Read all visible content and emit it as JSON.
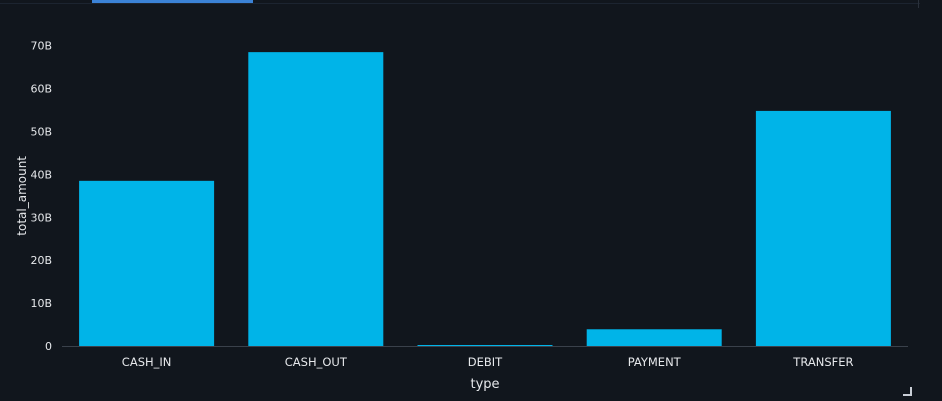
{
  "colors": {
    "background": "#11161d",
    "bar": "#00b4e8",
    "axis_text": "#e6e8eb",
    "axis_line": "#3a414b",
    "tab_indicator": "#3b82d6"
  },
  "chart_data": {
    "type": "bar",
    "xlabel": "type",
    "ylabel": "total_amount",
    "categories": [
      "CASH_IN",
      "CASH_OUT",
      "DEBIT",
      "PAYMENT",
      "TRANSFER"
    ],
    "values": [
      38.5,
      68.5,
      0.2,
      3.9,
      54.8
    ],
    "value_unit": "billions",
    "ylim": [
      0,
      75
    ],
    "yticks": [
      0,
      10,
      20,
      30,
      40,
      50,
      60,
      70
    ],
    "ytick_labels": [
      "0",
      "10B",
      "20B",
      "30B",
      "40B",
      "50B",
      "60B",
      "70B"
    ],
    "grid": false,
    "legend": "none"
  }
}
